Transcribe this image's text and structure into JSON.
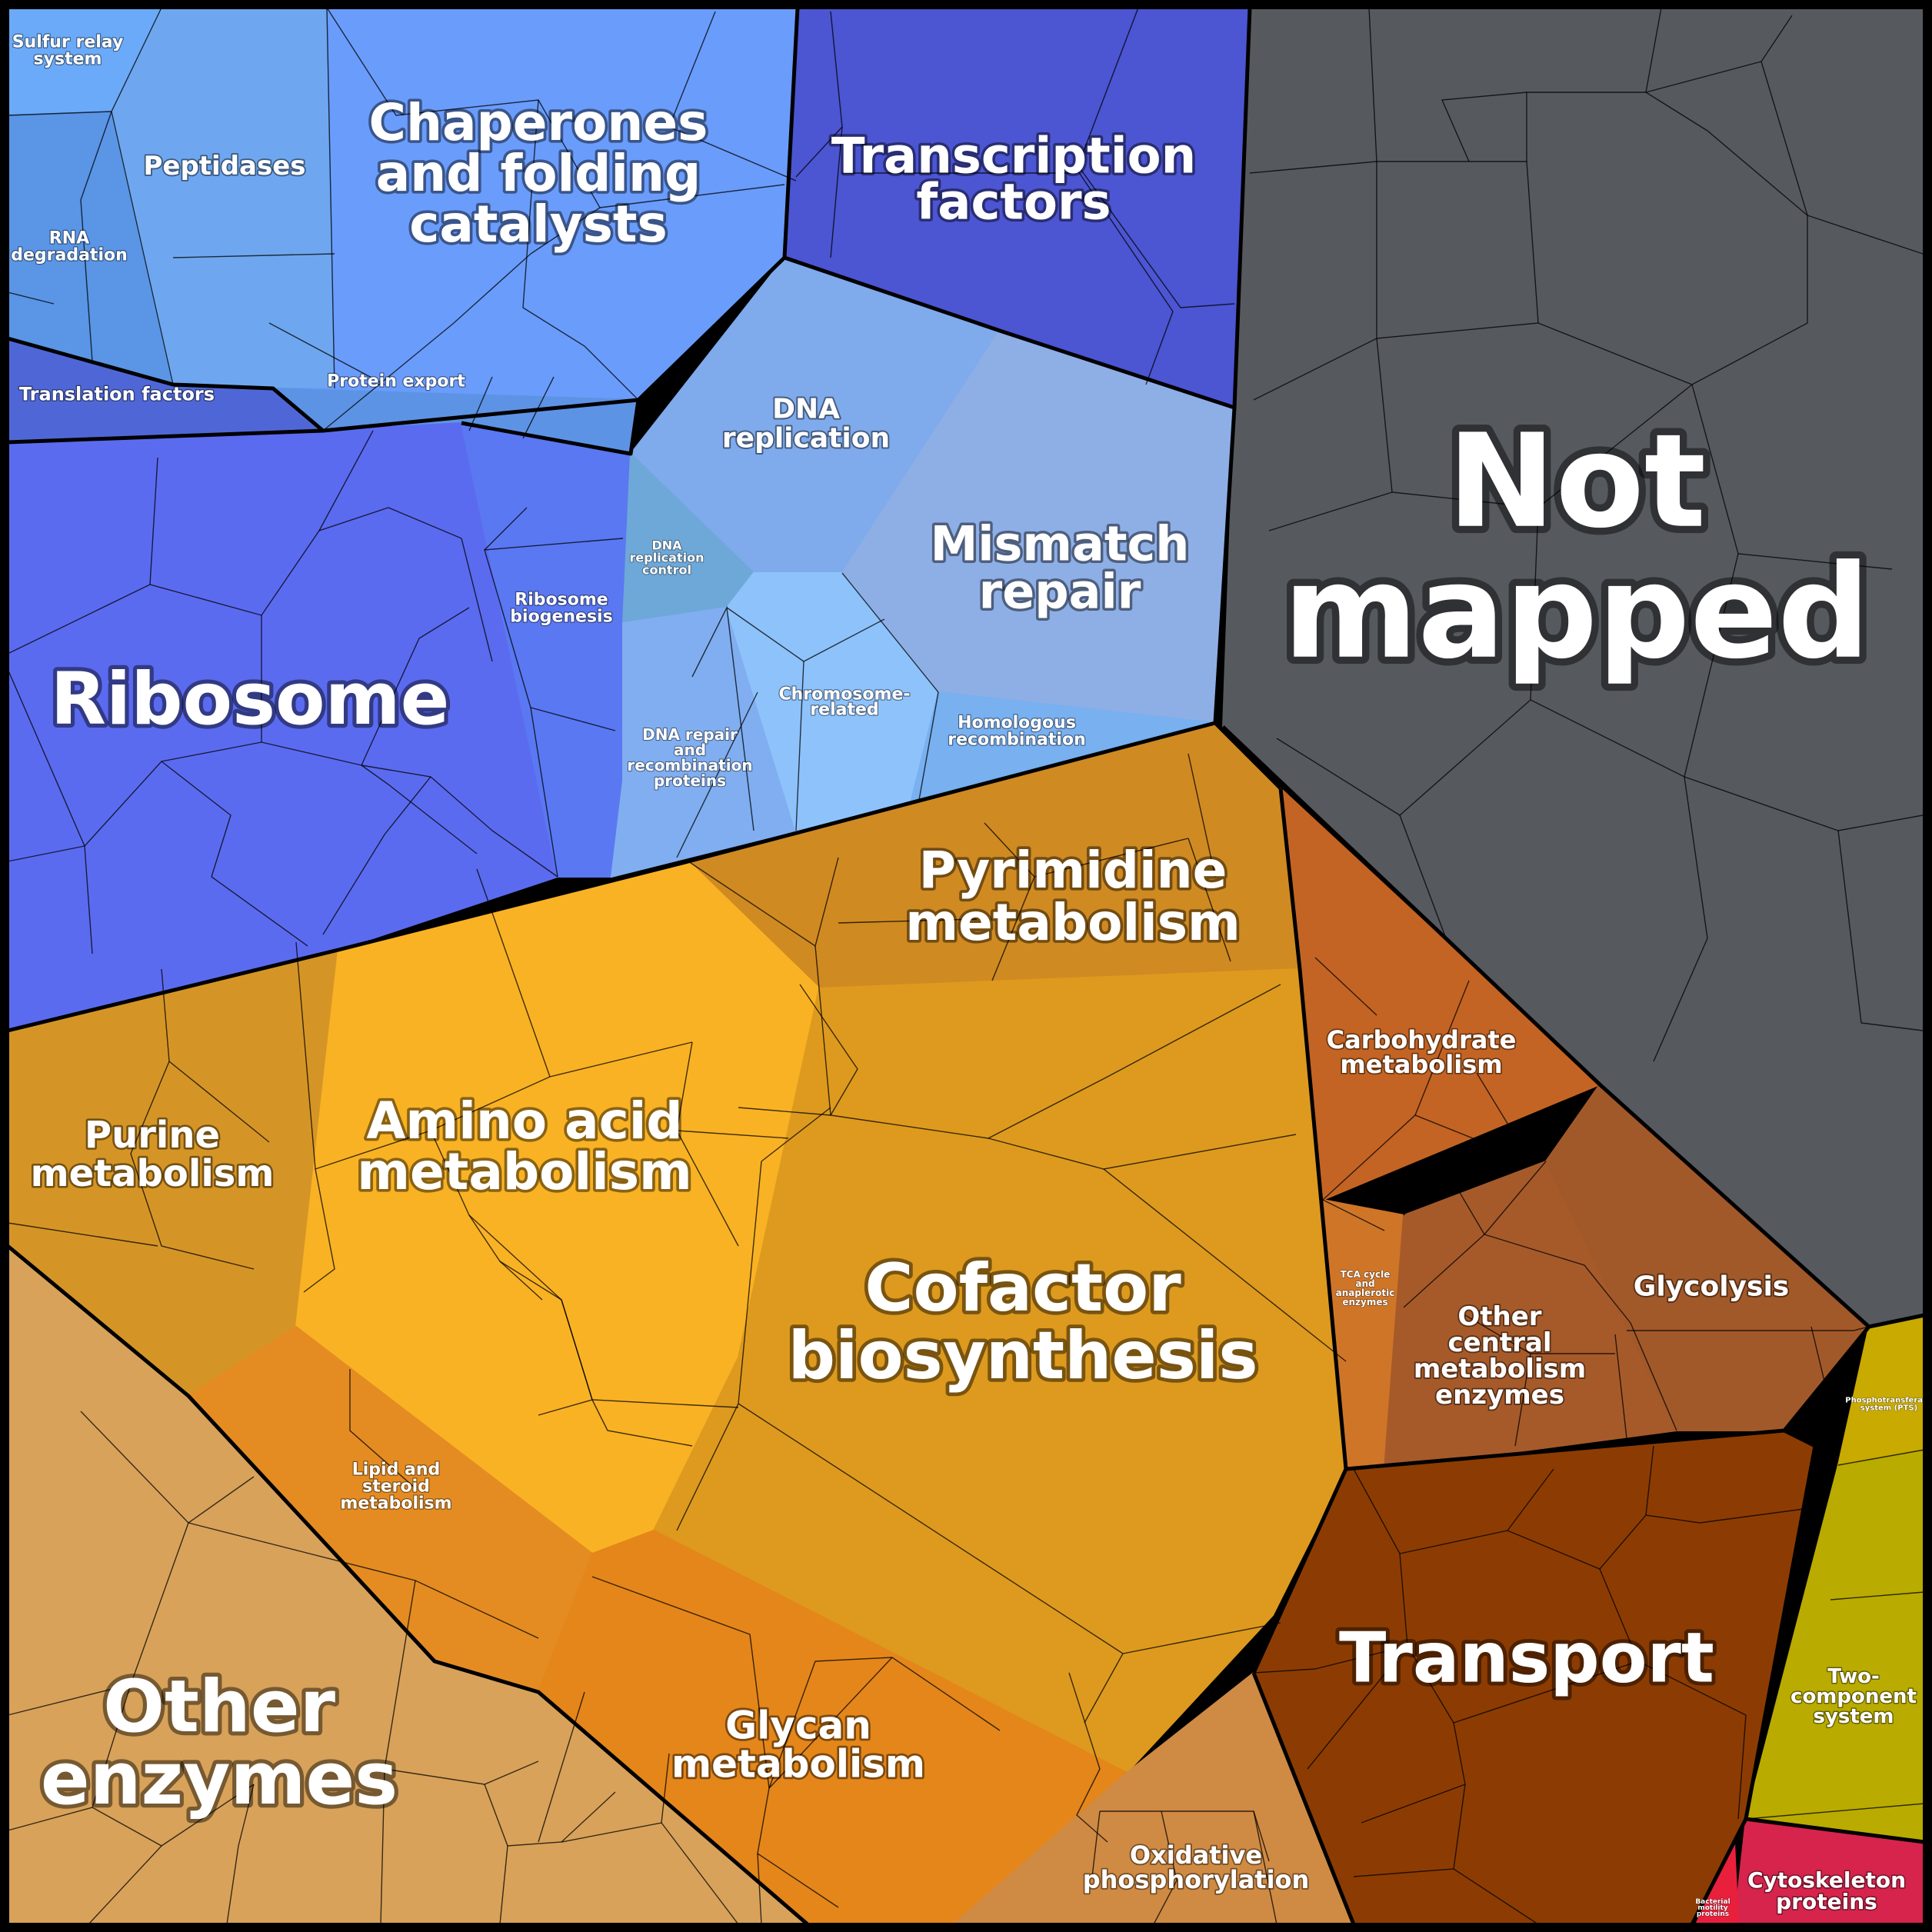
{
  "regions": [
    {
      "id": "sulfur-relay-system",
      "lines": [
        "Sulfur relay",
        "system"
      ],
      "color": "#6aaaf8"
    },
    {
      "id": "rna-degradation",
      "lines": [
        "RNA",
        "degradation"
      ],
      "color": "#5a95e6"
    },
    {
      "id": "peptidases",
      "lines": [
        "Peptidases"
      ],
      "color": "#6ea7ef"
    },
    {
      "id": "chaperones",
      "lines": [
        "Chaperones",
        "and folding",
        "catalysts"
      ],
      "color": "#6a9cfb"
    },
    {
      "id": "protein-export",
      "lines": [
        "Protein export"
      ],
      "color": "#5d93e4"
    },
    {
      "id": "translation-factors",
      "lines": [
        "Translation factors"
      ],
      "color": "#4f67d6"
    },
    {
      "id": "transcription-factors",
      "lines": [
        "Transcription",
        "factors"
      ],
      "color": "#4c55d2"
    },
    {
      "id": "ribosome",
      "lines": [
        "Ribosome"
      ],
      "color": "#5b6bf0"
    },
    {
      "id": "ribosome-biogenesis",
      "lines": [
        "Ribosome",
        "biogenesis"
      ],
      "color": "#5a78f2"
    },
    {
      "id": "dna-replication",
      "lines": [
        "DNA",
        "replication"
      ],
      "color": "#7faaec"
    },
    {
      "id": "mismatch-repair",
      "lines": [
        "Mismatch",
        "repair"
      ],
      "color": "#8eaee6"
    },
    {
      "id": "dna-replication-control",
      "lines": [
        "DNA",
        "replication",
        "control"
      ],
      "color": "#6da8d8"
    },
    {
      "id": "dna-repair",
      "lines": [
        "DNA repair",
        "and",
        "recombination",
        "proteins"
      ],
      "color": "#80aef0"
    },
    {
      "id": "chromosome-related",
      "lines": [
        "Chromosome-",
        "related"
      ],
      "color": "#8ec2fb"
    },
    {
      "id": "homologous-recombination",
      "lines": [
        "Homologous",
        "recombination"
      ],
      "color": "#78b0f0"
    },
    {
      "id": "not-mapped",
      "lines": [
        "Not",
        "mapped"
      ],
      "color": "#565a5f"
    },
    {
      "id": "pyrimidine-metabolism",
      "lines": [
        "Pyrimidine",
        "metabolism"
      ],
      "color": "#d08a22"
    },
    {
      "id": "purine-metabolism",
      "lines": [
        "Purine",
        "metabolism"
      ],
      "color": "#d59526"
    },
    {
      "id": "amino-acid-metabolism",
      "lines": [
        "Amino acid",
        "metabolism"
      ],
      "color": "#f9b224"
    },
    {
      "id": "cofactor-biosynthesis",
      "lines": [
        "Cofactor",
        "biosynthesis"
      ],
      "color": "#dd9a1e"
    },
    {
      "id": "carbohydrate-metabolism",
      "lines": [
        "Carbohydrate",
        "metabolism"
      ],
      "color": "#c36424"
    },
    {
      "id": "tca-cycle",
      "lines": [
        "TCA cycle",
        "and",
        "anaplerotic",
        "enzymes"
      ],
      "color": "#cf7528"
    },
    {
      "id": "other-central-metabolism",
      "lines": [
        "Other",
        "central",
        "metabolism",
        "enzymes"
      ],
      "color": "#a65a2a"
    },
    {
      "id": "glycolysis",
      "lines": [
        "Glycolysis"
      ],
      "color": "#a2592a"
    },
    {
      "id": "lipid-steroid-metabolism",
      "lines": [
        "Lipid and",
        "steroid",
        "metabolism"
      ],
      "color": "#e48c22"
    },
    {
      "id": "glycan-metabolism",
      "lines": [
        "Glycan",
        "metabolism"
      ],
      "color": "#e4861a"
    },
    {
      "id": "other-enzymes",
      "lines": [
        "Other",
        "enzymes"
      ],
      "color": "#d8a25a"
    },
    {
      "id": "oxidative-phosphorylation",
      "lines": [
        "Oxidative",
        "phosphorylation"
      ],
      "color": "#cf8a44"
    },
    {
      "id": "transport",
      "lines": [
        "Transport"
      ],
      "color": "#8c3c02"
    },
    {
      "id": "phosphotransferase-system",
      "lines": [
        "Phosphotransferase",
        "system (PTS)"
      ],
      "color": "#c8aa00"
    },
    {
      "id": "two-component-system",
      "lines": [
        "Two-",
        "component",
        "system"
      ],
      "color": "#b9ab00"
    },
    {
      "id": "cytoskeleton-proteins",
      "lines": [
        "Cytoskeleton",
        "proteins"
      ],
      "color": "#d6244c"
    },
    {
      "id": "bacterial-motility-proteins",
      "lines": [
        "Bacterial",
        "motility",
        "proteins"
      ],
      "color": "#e8203c"
    }
  ]
}
